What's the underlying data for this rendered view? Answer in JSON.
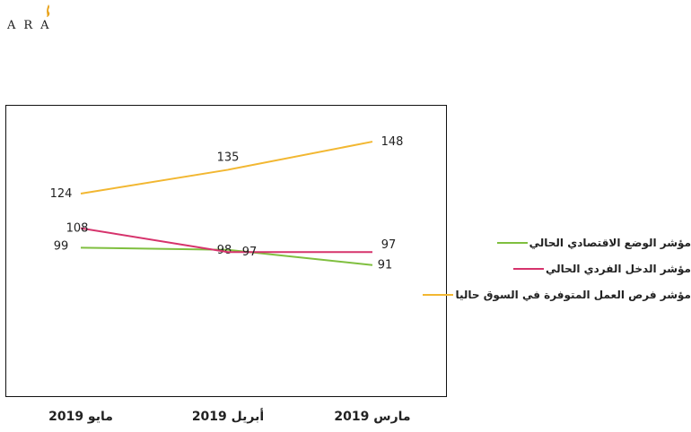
{
  "logo": {
    "text": "ARA"
  },
  "chart_data": {
    "type": "line",
    "categories": [
      "مايو 2019",
      "أبريل 2019",
      "مارس 2019"
    ],
    "series": [
      {
        "name": "مؤشر الوضع الاقتصادي الحالي",
        "color": "#7fbf3f",
        "values": [
          99,
          98,
          91
        ]
      },
      {
        "name": "مؤشر الدخل الفردي الحالي",
        "color": "#d6336c",
        "values": [
          108,
          97,
          97
        ]
      },
      {
        "name": "مؤشر فرص العمل المتوفرة في السوق حاليا",
        "color": "#f2b731",
        "values": [
          124,
          135,
          148
        ]
      }
    ],
    "ylim": [
      30,
      165
    ],
    "grid": false,
    "legend_position": "right"
  }
}
